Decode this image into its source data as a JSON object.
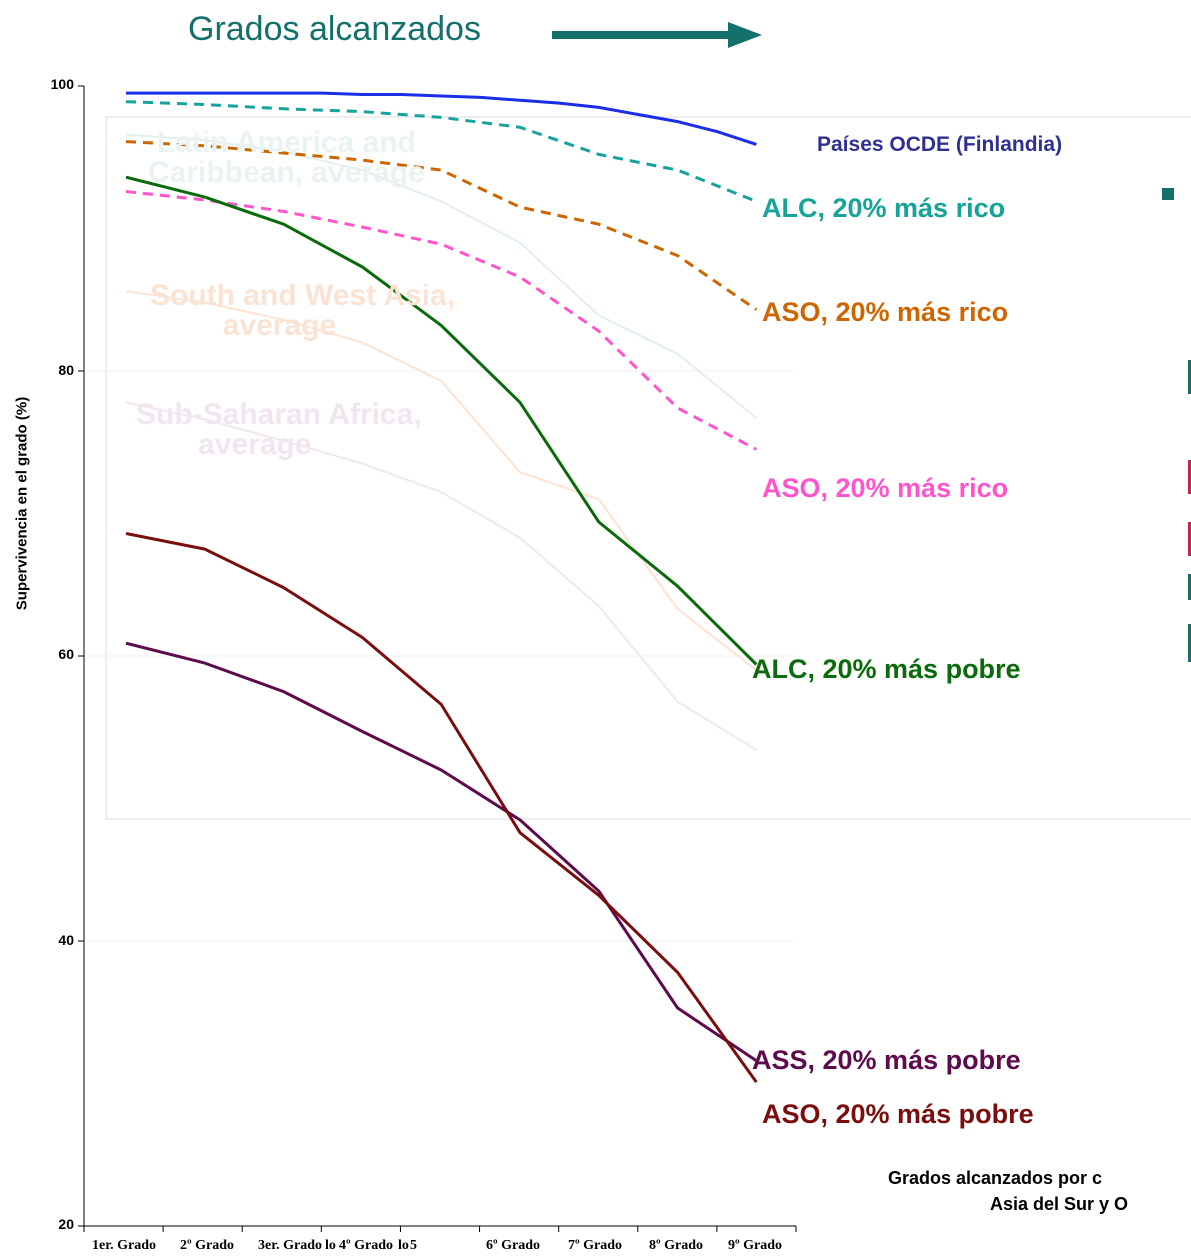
{
  "header": {
    "title": "Grados alcanzados"
  },
  "chart_data": {
    "type": "line",
    "ylabel": "Supervivencia en el grado (%)",
    "ylim": [
      20,
      100
    ],
    "yticks": [
      "20",
      "40",
      "60",
      "80",
      "100"
    ],
    "x_tick_labels": [
      {
        "text": "1er. Grado",
        "pos": 0
      },
      {
        "text": "2º Grado",
        "pos": 1
      },
      {
        "text": "3er. Grado",
        "pos": 2
      },
      {
        "text": "4º Grado",
        "pos": 3
      },
      {
        "text": "5",
        "pos": 4
      },
      {
        "text": "6º Grado",
        "pos": 5
      },
      {
        "text": "7º Grado",
        "pos": 6
      },
      {
        "text": "8º Grado",
        "pos": 7
      },
      {
        "text": "9º Grado",
        "pos": 8
      }
    ],
    "extra_tick_glyphs": [
      "lo",
      "lo"
    ],
    "series": [
      {
        "key": "oecd",
        "name": "Países OCDE (Finlandia)",
        "color": "#1a2ee8",
        "dash": "none",
        "width": 3,
        "x": [
          0,
          0.5,
          1,
          1.5,
          2,
          2.5,
          3,
          3.5,
          4,
          4.5,
          5,
          5.5,
          6,
          6.5,
          7,
          7.5,
          8
        ],
        "values": [
          99.5,
          99.5,
          99.5,
          99.5,
          99.5,
          99.5,
          99.4,
          99.4,
          99.3,
          99.2,
          99.0,
          98.8,
          98.5,
          98.0,
          97.5,
          96.8,
          95.9
        ]
      },
      {
        "key": "alc_rich",
        "name": "ALC, 20% más rico",
        "color": "#16a39a",
        "dash": "10,7",
        "width": 3,
        "x": [
          0,
          1,
          2,
          3,
          4,
          5,
          6,
          7,
          8
        ],
        "values": [
          98.9,
          98.7,
          98.4,
          98.2,
          97.8,
          97.1,
          95.2,
          94.1,
          91.9
        ]
      },
      {
        "key": "aso_rich1",
        "name": "ASO, 20% más rico",
        "color": "#cc6600",
        "dash": "10,7",
        "width": 3,
        "x": [
          0,
          1,
          2,
          3,
          4,
          5,
          6,
          7,
          8
        ],
        "values": [
          96.1,
          95.8,
          95.3,
          94.8,
          94.1,
          91.5,
          90.3,
          88.1,
          84.3
        ]
      },
      {
        "key": "aso_rich2",
        "name": "ASO, 20% más rico",
        "color": "#ff55cc",
        "dash": "10,7",
        "width": 3,
        "x": [
          0,
          1,
          2,
          3,
          4,
          5,
          6,
          7,
          8
        ],
        "values": [
          92.6,
          92.0,
          91.2,
          90.1,
          88.9,
          86.6,
          82.8,
          77.4,
          74.5
        ]
      },
      {
        "key": "alc_poor",
        "name": "ALC, 20% más pobre",
        "color": "#0b6a0b",
        "dash": "none",
        "width": 3,
        "x": [
          0,
          1,
          2,
          3,
          4,
          5,
          6,
          7,
          8
        ],
        "values": [
          93.6,
          92.2,
          90.3,
          87.3,
          83.2,
          77.8,
          69.4,
          64.9,
          59.4
        ]
      },
      {
        "key": "aso_poor",
        "name": "ASO, 20% más pobre",
        "color": "#7a0e0e",
        "dash": "none",
        "width": 3,
        "x": [
          0,
          1,
          2,
          3,
          4,
          5,
          6,
          7,
          8
        ],
        "values": [
          68.6,
          67.5,
          64.8,
          61.3,
          56.6,
          47.6,
          43.2,
          37.8,
          30.1
        ]
      },
      {
        "key": "ass_poor",
        "name": "ASS, 20% más pobre",
        "color": "#5e0b4d",
        "dash": "none",
        "width": 3,
        "x": [
          0,
          1,
          2,
          3,
          4,
          5,
          6,
          7,
          8
        ],
        "values": [
          60.9,
          59.5,
          57.5,
          54.7,
          52.0,
          48.5,
          43.5,
          35.3,
          31.6
        ]
      },
      {
        "key": "lac_avg",
        "name": "Latin America and Caribbean, average",
        "color": "#e2efec",
        "dash": "none",
        "width": 2,
        "x": [
          0,
          1,
          2,
          3,
          4,
          5,
          6,
          7,
          8
        ],
        "values": [
          96.6,
          96.2,
          95.4,
          94.1,
          91.9,
          89.0,
          83.9,
          81.2,
          76.7
        ]
      },
      {
        "key": "sa_avg",
        "name": "South and West Asia, average",
        "color": "#fce3d2",
        "dash": "none",
        "width": 2,
        "x": [
          0,
          1,
          2,
          3,
          4,
          5,
          6,
          7,
          8
        ],
        "values": [
          85.6,
          84.8,
          83.6,
          82.0,
          79.3,
          72.9,
          71.0,
          63.3,
          59.0
        ]
      },
      {
        "key": "ssa_avg",
        "name": "Sub-Saharan Africa, average",
        "color": "#f1e7f0",
        "dash": "none",
        "width": 2,
        "x": [
          0,
          1,
          2,
          3,
          4,
          5,
          6,
          7,
          8
        ],
        "values": [
          77.8,
          76.6,
          75.1,
          73.5,
          71.5,
          68.3,
          63.5,
          56.8,
          53.4
        ]
      }
    ],
    "annotations": [
      {
        "text": "ALC, 20% más rico",
        "color": "#16a39a"
      },
      {
        "text": "ASO, 20% más rico",
        "color": "#cc6600"
      },
      {
        "text": "ASO, 20% más rico",
        "color": "#ff55cc"
      },
      {
        "text": "ALC, 20% más pobre",
        "color": "#0b6a0b"
      },
      {
        "text": "ASS, 20% más pobre",
        "color": "#5e0b4d"
      },
      {
        "text": "ASO, 20% más pobre",
        "color": "#7a0e0e"
      }
    ],
    "oecd_label": "Países OCDE (Finlandia)",
    "ghost_labels": [
      {
        "line1": "Latin America and",
        "line2": "Caribbean, average",
        "color": "#e9f3f1"
      },
      {
        "line1": "South and West Asia,",
        "line2": "average",
        "color": "#fbe3d4"
      },
      {
        "line1": "Sub-Saharan Africa,",
        "line2": "average",
        "color": "#f1e5f0"
      }
    ]
  },
  "footnote": {
    "line1": "Grados alcanzados por c",
    "line2": "Asia del Sur y O"
  },
  "right_fragments": [
    {
      "color": "#14706a"
    },
    {
      "color": "#cc2255"
    },
    {
      "color": "#cc2255"
    },
    {
      "color": "#cc2255"
    },
    {
      "color": "#14706a"
    },
    {
      "color": "#14706a"
    }
  ]
}
